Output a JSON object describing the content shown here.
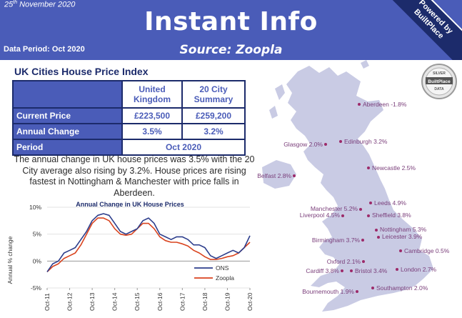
{
  "header": {
    "date_day": "25",
    "date_suffix": "th",
    "date_rest": " November 2020",
    "title": "Instant Info",
    "source": "Source: Zoopla",
    "period": "Data Period: Oct 2020"
  },
  "corner_badge": {
    "line1": "Powered by",
    "line2": "BuiltPlace"
  },
  "seal": {
    "top": "SILVER",
    "middle": "BuiltPlace",
    "bottom": "DATA"
  },
  "left": {
    "heading": "UK Cities House Price Index",
    "table": {
      "col1": "United Kingdom",
      "col2": "20 City Summary",
      "rows": [
        {
          "label": "Current Price",
          "uk": "£223,500",
          "city": "£259,200"
        },
        {
          "label": "Annual Change",
          "uk": "3.5%",
          "city": "3.2%"
        }
      ],
      "period_label": "Period",
      "period_value": "Oct 2020"
    },
    "summary": "The annual change in UK house prices was 3.5% with the 20 City average also rising by 3.2%. House prices are rising fastest in Nottingham & Manchester with price falls in Aberdeen."
  },
  "chart_data": {
    "type": "line",
    "title": "Annual Change in UK House Prices",
    "ylabel": "Annual % change",
    "xlabel": "",
    "ylim": [
      -5,
      10
    ],
    "yticks": [
      "10%",
      "5%",
      "0%",
      "-5%"
    ],
    "xticks": [
      "Oct-11",
      "Oct-12",
      "Oct-13",
      "Oct-14",
      "Oct-15",
      "Oct-16",
      "Oct-17",
      "Oct-18",
      "Oct-19",
      "Oct-20"
    ],
    "series": [
      {
        "name": "ONS",
        "color": "#2d3e8c",
        "x": [
          2011.75,
          2012.0,
          2012.25,
          2012.5,
          2012.75,
          2013.0,
          2013.25,
          2013.5,
          2013.75,
          2014.0,
          2014.25,
          2014.5,
          2014.75,
          2015.0,
          2015.25,
          2015.5,
          2015.75,
          2016.0,
          2016.25,
          2016.5,
          2016.75,
          2017.0,
          2017.25,
          2017.5,
          2017.75,
          2018.0,
          2018.25,
          2018.5,
          2018.75,
          2019.0,
          2019.25,
          2019.5,
          2019.75,
          2020.0,
          2020.25,
          2020.5,
          2020.75
        ],
        "values": [
          -2.0,
          -0.5,
          0.0,
          1.5,
          2.0,
          2.5,
          4.0,
          5.5,
          7.5,
          8.5,
          8.8,
          8.5,
          7.0,
          5.5,
          5.0,
          5.5,
          6.0,
          7.5,
          8.0,
          7.0,
          5.0,
          4.5,
          4.0,
          4.5,
          4.5,
          4.0,
          3.0,
          3.0,
          2.5,
          1.0,
          0.5,
          1.0,
          1.5,
          2.0,
          1.5,
          2.5,
          4.7
        ]
      },
      {
        "name": "Zoopla",
        "color": "#d9431e",
        "x": [
          2011.75,
          2012.0,
          2012.25,
          2012.5,
          2012.75,
          2013.0,
          2013.25,
          2013.5,
          2013.75,
          2014.0,
          2014.25,
          2014.5,
          2014.75,
          2015.0,
          2015.25,
          2015.5,
          2015.75,
          2016.0,
          2016.25,
          2016.5,
          2016.75,
          2017.0,
          2017.25,
          2017.5,
          2017.75,
          2018.0,
          2018.25,
          2018.5,
          2018.75,
          2019.0,
          2019.25,
          2019.5,
          2019.75,
          2020.0,
          2020.25,
          2020.5,
          2020.75
        ],
        "values": [
          -2.0,
          -1.0,
          -0.5,
          0.5,
          1.0,
          1.5,
          3.0,
          5.0,
          7.0,
          8.0,
          8.0,
          7.5,
          6.0,
          5.0,
          4.8,
          5.0,
          6.0,
          7.0,
          7.0,
          6.0,
          4.5,
          3.8,
          3.5,
          3.5,
          3.2,
          2.8,
          2.0,
          1.5,
          0.8,
          0.3,
          0.3,
          0.5,
          0.8,
          1.0,
          1.5,
          2.5,
          3.5
        ]
      }
    ],
    "legend_position": "bottom-right"
  },
  "map": {
    "cities": [
      {
        "label": "Aberdeen -1.8%"
      },
      {
        "label": "Glasgow 2.0%"
      },
      {
        "label": "Edinburgh 3.2%"
      },
      {
        "label": "Belfast 2.8%"
      },
      {
        "label": "Newcastle 2.5%"
      },
      {
        "label": "Leeds 4.9%"
      },
      {
        "label": "Manchester 5.2%"
      },
      {
        "label": "Liverpool 4.5%"
      },
      {
        "label": "Sheffield 3.8%"
      },
      {
        "label": "Nottingham 5.3%"
      },
      {
        "label": "Leicester 3.9%"
      },
      {
        "label": "Birmingham 3.7%"
      },
      {
        "label": "Cambridge 0.5%"
      },
      {
        "label": "Oxford 2.1%"
      },
      {
        "label": "Cardiff 3.8%"
      },
      {
        "label": "Bristol 3.4%"
      },
      {
        "label": "London 2.7%"
      },
      {
        "label": "Southampton 2.0%"
      },
      {
        "label": "Bournemouth 1.9%"
      }
    ],
    "dot_color": "#9c2a6a",
    "land_color": "#c9cbe4"
  }
}
